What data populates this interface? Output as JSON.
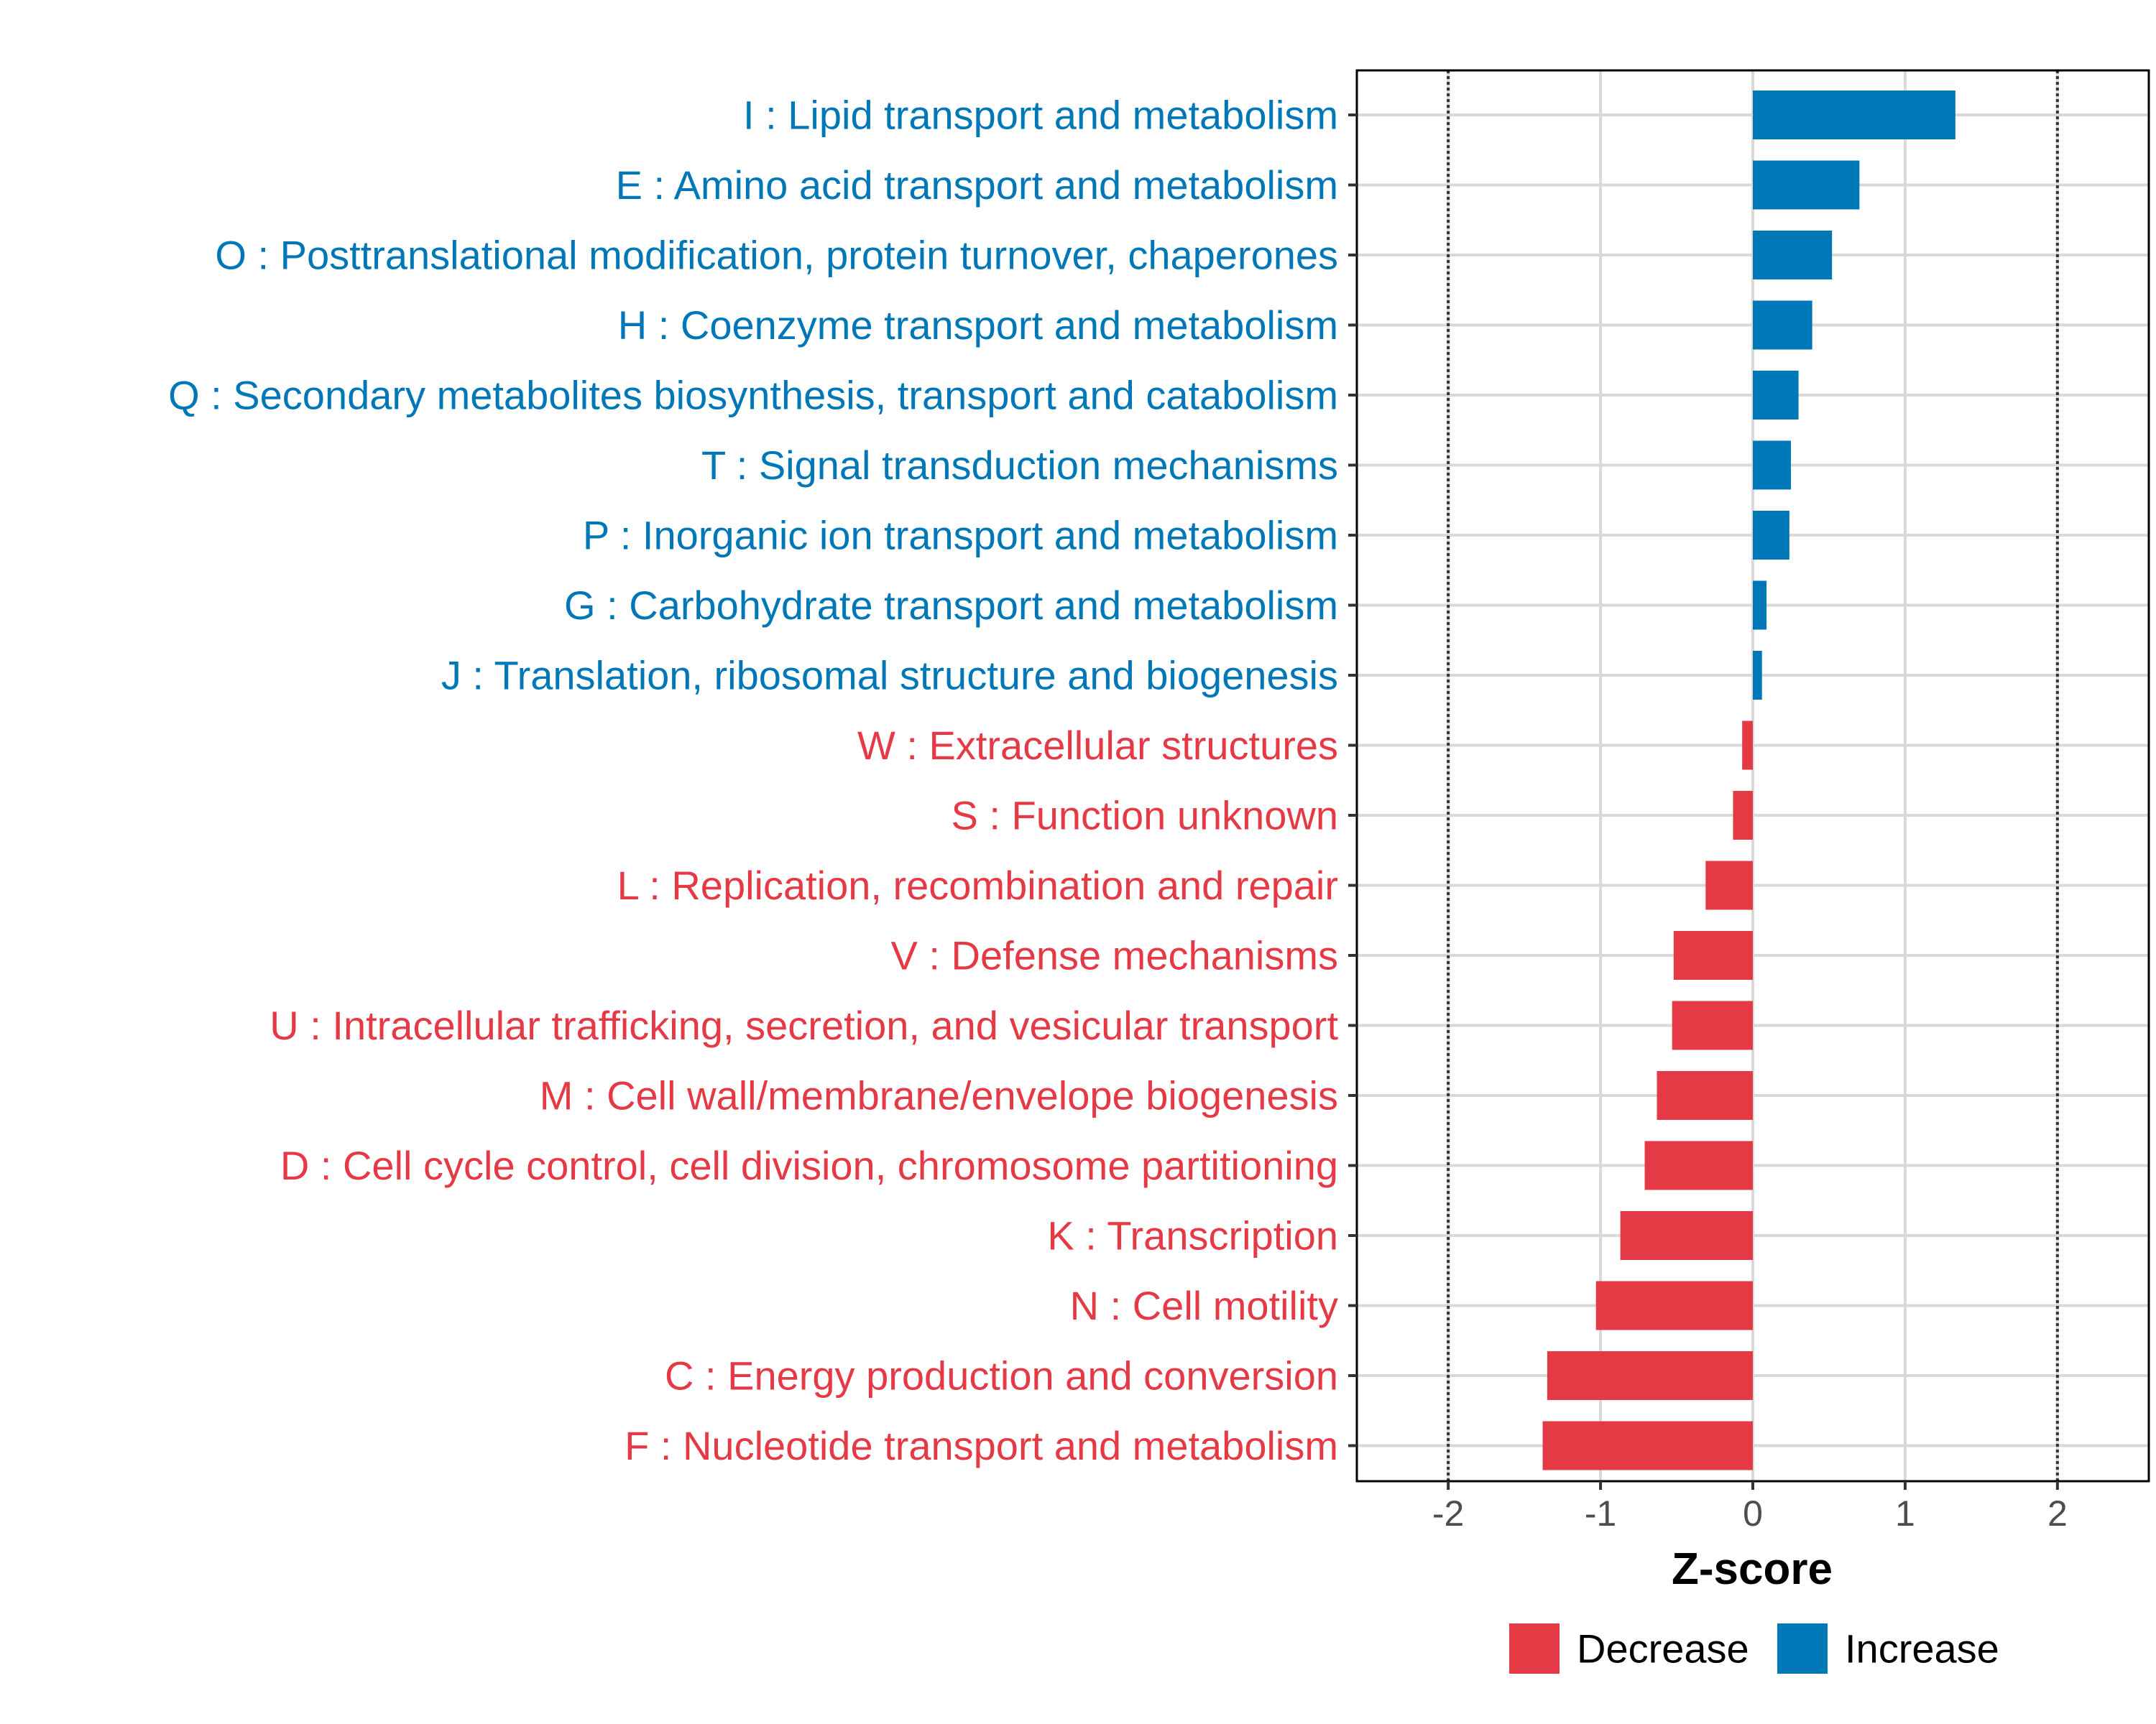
{
  "chart_data": {
    "type": "bar",
    "orientation": "horizontal",
    "xlabel": "Z-score",
    "ylabel": "",
    "xlim": [
      -2.6,
      2.6
    ],
    "xticks": [
      -2,
      -1,
      0,
      1,
      2
    ],
    "tick_labels": [
      "-2",
      "-1",
      "0",
      "1",
      "2"
    ],
    "reference_lines": [
      -2,
      2
    ],
    "grid": true,
    "legend_position": "bottom",
    "colors": {
      "Decrease": "#e63946",
      "Increase": "#0077b6"
    },
    "legend": [
      {
        "name": "Decrease",
        "color": "#e63946"
      },
      {
        "name": "Increase",
        "color": "#0077b6"
      }
    ],
    "categories": [
      "I : Lipid transport and metabolism",
      "E : Amino acid transport and metabolism",
      "O : Posttranslational modification, protein turnover, chaperones",
      "H : Coenzyme transport and metabolism",
      "Q : Secondary metabolites biosynthesis, transport and catabolism",
      "T : Signal transduction mechanisms",
      "P : Inorganic ion transport and metabolism",
      "G : Carbohydrate transport and metabolism",
      "J : Translation, ribosomal structure and biogenesis",
      "W : Extracellular structures",
      "S : Function unknown",
      "L : Replication, recombination and repair",
      "V : Defense mechanisms",
      "U : Intracellular trafficking, secretion, and vesicular transport",
      "M : Cell wall/membrane/envelope biogenesis",
      "D : Cell cycle control, cell division, chromosome partitioning",
      "K : Transcription",
      "N : Cell motility",
      "C : Energy production and conversion",
      "F : Nucleotide transport and metabolism"
    ],
    "values": [
      1.33,
      0.7,
      0.52,
      0.39,
      0.3,
      0.25,
      0.24,
      0.09,
      0.06,
      -0.07,
      -0.13,
      -0.31,
      -0.52,
      -0.53,
      -0.63,
      -0.71,
      -0.87,
      -1.03,
      -1.35,
      -1.38
    ],
    "groups": [
      "Increase",
      "Increase",
      "Increase",
      "Increase",
      "Increase",
      "Increase",
      "Increase",
      "Increase",
      "Increase",
      "Decrease",
      "Decrease",
      "Decrease",
      "Decrease",
      "Decrease",
      "Decrease",
      "Decrease",
      "Decrease",
      "Decrease",
      "Decrease",
      "Decrease"
    ]
  }
}
